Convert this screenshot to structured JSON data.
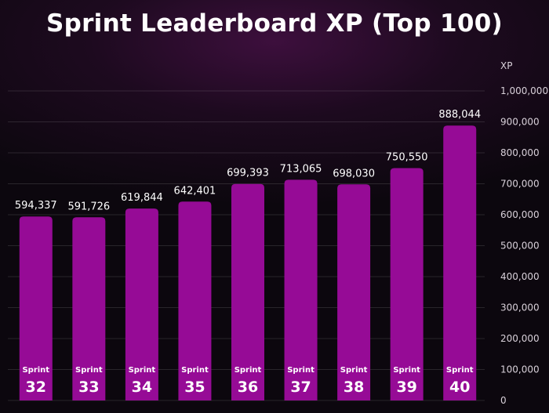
{
  "chart_data": {
    "type": "bar",
    "title": "Sprint Leaderboard XP (Top 100)",
    "unit_label": "XP",
    "category_prefix": "Sprint",
    "categories": [
      "32",
      "33",
      "34",
      "35",
      "36",
      "37",
      "38",
      "39",
      "40"
    ],
    "values": [
      594337,
      591726,
      619844,
      642401,
      699393,
      713065,
      698030,
      750550,
      888044
    ],
    "value_labels": [
      "594,337",
      "591,726",
      "619,844",
      "642,401",
      "699,393",
      "713,065",
      "698,030",
      "750,550",
      "888,044"
    ],
    "ylim": [
      0,
      1000000
    ],
    "y_ticks": [
      0,
      100000,
      200000,
      300000,
      400000,
      500000,
      600000,
      700000,
      800000,
      900000,
      1000000
    ],
    "y_tick_labels": [
      "0",
      "100,000",
      "200,000",
      "300,000",
      "400,000",
      "500,000",
      "600,000",
      "700,000",
      "800,000",
      "900,000",
      "1,000,000"
    ],
    "axis_position": "right",
    "grid": true,
    "bar_color": "#960b96"
  }
}
